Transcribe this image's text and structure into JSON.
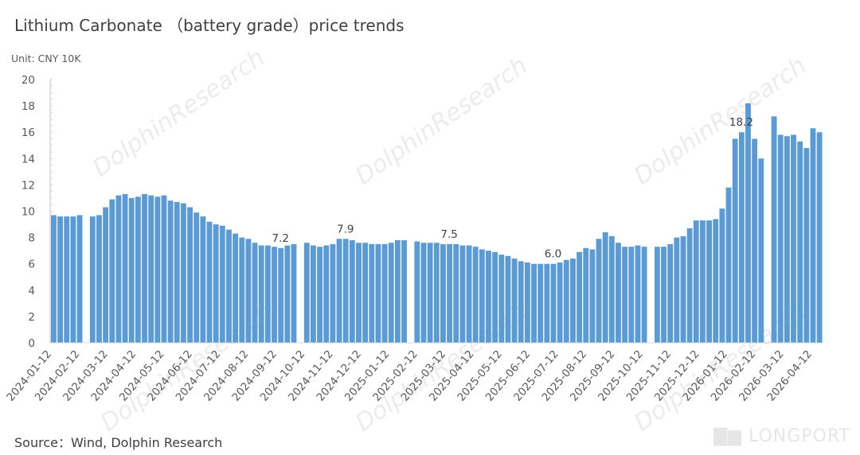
{
  "title": "Lithium Carbonate （battery grade）price trends",
  "unit": "Unit: CNY 10K",
  "source": "Source：Wind, Dolphin Research",
  "watermark": "DolphinResearch",
  "logo": "LONGPORT",
  "chart_data": {
    "type": "bar",
    "title": "Lithium Carbonate （battery grade）price trends",
    "ylabel": "Unit: CNY 10K",
    "ylim": [
      0,
      20
    ],
    "yticks": [
      0,
      2,
      4,
      6,
      8,
      10,
      12,
      14,
      16,
      18,
      20
    ],
    "grid": false,
    "bar_color": "#5b9bd5",
    "xtick_labels": [
      "2024-01-12",
      "2024-02-12",
      "2024-03-12",
      "2024-04-12",
      "2024-05-12",
      "2024-06-12",
      "2024-07-12",
      "2024-08-12",
      "2024-09-12",
      "2024-10-12",
      "2024-11-12",
      "2024-12-12",
      "2025-01-12",
      "2025-02-12",
      "2025-03-12",
      "2025-04-12",
      "2025-05-12",
      "2025-06-12",
      "2025-07-12",
      "2025-08-12",
      "2025-09-12",
      "2025-10-12",
      "2025-11-12",
      "2025-12-12",
      "2026-01-12",
      "2026-02-12",
      "2026-03-12",
      "2026-04-12"
    ],
    "x": [
      "2024-01-12",
      "2024-01-19",
      "2024-01-26",
      "2024-02-02",
      "2024-02-09",
      "2024-02-16",
      "2024-02-23",
      "2024-03-01",
      "2024-03-08",
      "2024-03-15",
      "2024-03-22",
      "2024-03-29",
      "2024-04-05",
      "2024-04-12",
      "2024-04-19",
      "2024-04-26",
      "2024-05-03",
      "2024-05-10",
      "2024-05-17",
      "2024-05-24",
      "2024-05-31",
      "2024-06-07",
      "2024-06-14",
      "2024-06-21",
      "2024-06-28",
      "2024-07-05",
      "2024-07-12",
      "2024-07-19",
      "2024-07-26",
      "2024-08-02",
      "2024-08-09",
      "2024-08-16",
      "2024-08-23",
      "2024-08-30",
      "2024-09-06",
      "2024-09-13",
      "2024-09-20",
      "2024-09-27",
      "2024-10-04",
      "2024-10-11",
      "2024-10-18",
      "2024-10-25",
      "2024-11-01",
      "2024-11-08",
      "2024-11-15",
      "2024-11-22",
      "2024-11-29",
      "2024-12-06",
      "2024-12-13",
      "2024-12-20",
      "2024-12-27",
      "2025-01-03",
      "2025-01-10",
      "2025-01-17",
      "2025-01-24",
      "2025-01-31",
      "2025-02-07",
      "2025-02-14",
      "2025-02-21",
      "2025-02-28",
      "2025-03-07",
      "2025-03-14",
      "2025-03-21",
      "2025-03-28",
      "2025-04-04",
      "2025-04-11",
      "2025-04-18",
      "2025-04-25",
      "2025-05-02",
      "2025-05-09",
      "2025-05-16",
      "2025-05-23",
      "2025-05-30",
      "2025-06-06",
      "2025-06-13",
      "2025-06-20",
      "2025-06-27",
      "2025-07-04",
      "2025-07-11",
      "2025-07-18",
      "2025-07-25",
      "2025-08-01",
      "2025-08-08",
      "2025-08-15",
      "2025-08-22",
      "2025-08-29",
      "2025-09-05",
      "2025-09-12",
      "2025-09-19",
      "2025-09-26",
      "2025-10-03",
      "2025-10-10",
      "2025-10-17",
      "2025-10-24",
      "2025-10-31",
      "2025-11-07",
      "2025-11-14",
      "2025-11-21",
      "2025-11-28",
      "2025-12-05",
      "2025-12-12",
      "2025-12-19",
      "2025-12-26",
      "2026-01-02",
      "2026-01-09",
      "2026-01-16",
      "2026-01-23",
      "2026-01-30",
      "2026-02-06",
      "2026-02-13",
      "2026-02-20",
      "2026-02-27",
      "2026-03-06",
      "2026-03-13",
      "2026-03-20",
      "2026-03-27",
      "2026-04-03",
      "2026-04-10",
      "2026-04-17"
    ],
    "values": [
      9.7,
      9.6,
      9.6,
      9.6,
      9.7,
      null,
      9.6,
      9.7,
      10.3,
      10.9,
      11.2,
      11.3,
      11.0,
      11.1,
      11.3,
      11.2,
      11.1,
      11.2,
      10.8,
      10.7,
      10.6,
      10.3,
      9.9,
      9.6,
      9.2,
      9.0,
      8.9,
      8.6,
      8.3,
      8.0,
      7.9,
      7.6,
      7.4,
      7.4,
      7.3,
      7.2,
      7.4,
      7.5,
      null,
      7.6,
      7.4,
      7.3,
      7.4,
      7.5,
      7.9,
      7.9,
      7.8,
      7.6,
      7.6,
      7.5,
      7.5,
      7.5,
      7.6,
      7.8,
      7.8,
      null,
      7.7,
      7.6,
      7.6,
      7.6,
      7.5,
      7.5,
      7.5,
      7.4,
      7.4,
      7.3,
      7.1,
      7.0,
      6.9,
      6.7,
      6.6,
      6.4,
      6.2,
      6.1,
      6.0,
      6.0,
      6.0,
      6.0,
      6.1,
      6.3,
      6.4,
      6.9,
      7.2,
      7.1,
      7.9,
      8.4,
      8.1,
      7.6,
      7.3,
      7.3,
      7.4,
      7.3,
      null,
      7.3,
      7.3,
      7.5,
      8.0,
      8.1,
      8.7,
      9.3,
      9.3,
      9.3,
      9.4,
      10.2,
      11.8,
      15.5,
      16.0,
      18.2,
      15.5,
      14.0,
      null,
      17.2,
      15.8,
      15.7,
      15.8,
      15.3,
      14.8,
      16.3,
      16.0
    ],
    "data_labels": [
      {
        "x": "2024-09-13",
        "text": "7.2"
      },
      {
        "x": "2024-11-22",
        "text": "7.9"
      },
      {
        "x": "2025-03-14",
        "text": "7.5"
      },
      {
        "x": "2025-07-04",
        "text": "6.0"
      },
      {
        "x": "2026-01-23",
        "text": "18.2"
      }
    ]
  }
}
